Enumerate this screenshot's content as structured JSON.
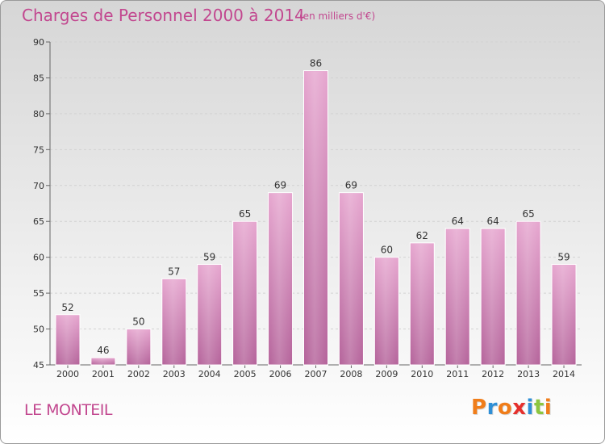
{
  "header": {
    "title": "Charges de Personnel 2000 à 2014",
    "subtitle": "(en milliers d'€)"
  },
  "footer": {
    "location": "LE MONTEIL",
    "logo_text": "Proxiti"
  },
  "colors": {
    "accent": "#c2478f",
    "bar_top": "#e6a6cf",
    "bar_bottom": "#b5649b",
    "logo": [
      "#f07d1a",
      "#2f8fd6",
      "#f07d1a",
      "#e5302d",
      "#2f8fd6",
      "#8cc63f",
      "#f07d1a"
    ]
  },
  "chart_data": {
    "type": "bar",
    "categories": [
      "2000",
      "2001",
      "2002",
      "2003",
      "2004",
      "2005",
      "2006",
      "2007",
      "2008",
      "2009",
      "2010",
      "2011",
      "2012",
      "2013",
      "2014"
    ],
    "values": [
      52,
      46,
      50,
      57,
      59,
      65,
      69,
      86,
      69,
      60,
      62,
      64,
      64,
      65,
      59
    ],
    "ylim": [
      45,
      90
    ],
    "yticks": [
      45,
      50,
      55,
      60,
      65,
      70,
      75,
      80,
      85,
      90
    ],
    "grid": true,
    "xlabel": "",
    "ylabel": ""
  }
}
